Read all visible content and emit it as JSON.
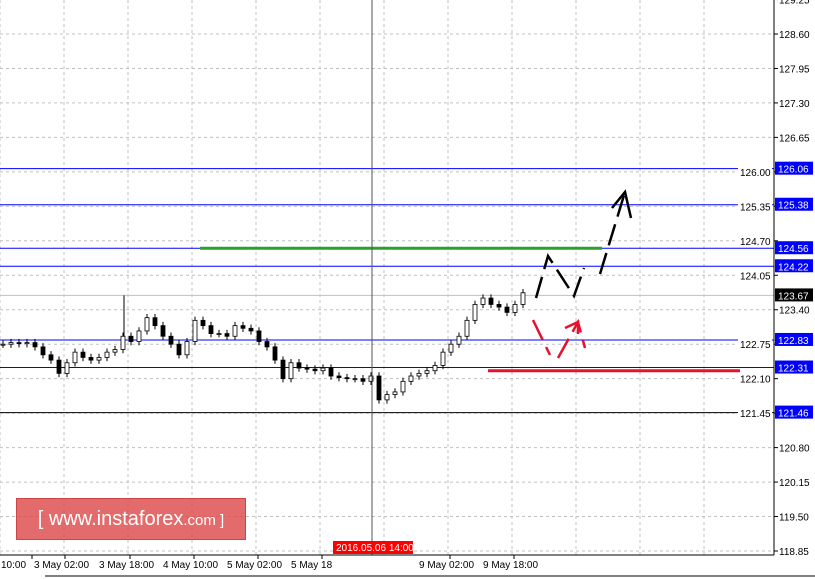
{
  "chart_data": {
    "type": "candlestick",
    "y_ticks": [
      "129.25",
      "128.60",
      "127.95",
      "127.30",
      "126.65",
      "126.00",
      "125.35",
      "124.70",
      "124.05",
      "123.40",
      "122.75",
      "122.10",
      "121.45",
      "120.80",
      "120.15",
      "119.50",
      "118.85"
    ],
    "ylim": [
      118.85,
      129.25
    ],
    "x_ticks": [
      "10:00",
      "3 May 02:00",
      "3 May 18:00",
      "4 May 10:00",
      "5 May 02:00",
      "5 May 18",
      "9 May 02:00",
      "9 May 18:00"
    ],
    "crosshair_time": "2016.05.06 14:00",
    "current_price": "123.67",
    "levels": [
      {
        "label": "126.06",
        "value": 126.06,
        "color": "#0000ff"
      },
      {
        "label": "125.38",
        "value": 125.38,
        "color": "#0000ff"
      },
      {
        "label": "124.56",
        "value": 124.56,
        "color": "#0000ff"
      },
      {
        "label": "124.22",
        "value": 124.22,
        "color": "#0000ff"
      },
      {
        "label": "122.83",
        "value": 122.83,
        "color": "#0000ff"
      },
      {
        "label": "122.31",
        "value": 122.31,
        "color": "#0000ff"
      },
      {
        "label": "121.46",
        "value": 121.46,
        "color": "#000080"
      }
    ],
    "green_level": 124.56,
    "red_level": 122.25,
    "closes": [
      122.75,
      122.78,
      122.76,
      122.78,
      122.7,
      122.55,
      122.45,
      122.2,
      122.4,
      122.6,
      122.5,
      122.45,
      122.5,
      122.6,
      122.65,
      122.9,
      122.8,
      123.0,
      123.25,
      123.1,
      122.9,
      122.75,
      122.55,
      122.8,
      123.2,
      123.1,
      122.95,
      122.95,
      122.9,
      123.1,
      123.05,
      123.0,
      122.8,
      122.7,
      122.45,
      122.1,
      122.4,
      122.3,
      122.28,
      122.25,
      122.3,
      122.15,
      122.12,
      122.1,
      122.1,
      122.05,
      122.15,
      121.7,
      121.8,
      121.85,
      122.05,
      122.15,
      122.2,
      122.25,
      122.35,
      122.6,
      122.75,
      122.9,
      123.2,
      123.5,
      123.62,
      123.5,
      123.45,
      123.35,
      123.5,
      123.72
    ],
    "grid": true,
    "colors": {
      "level": "#0000ff",
      "green": "#2ca02c",
      "red": "#e8112d",
      "axis_label_bg": "#0000ff",
      "crosshair_label": "#ff0000"
    }
  },
  "watermark": {
    "prefix": "[ www.instaforex",
    "suffix": ".com ]"
  }
}
